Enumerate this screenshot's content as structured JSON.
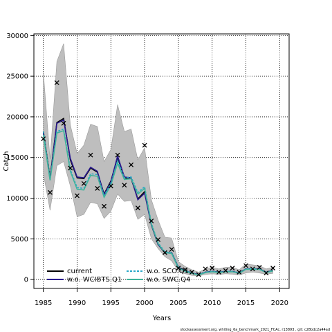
{
  "chart_data": {
    "type": "line",
    "xlabel": "Years",
    "ylabel": "Catch",
    "xlim": [
      1983.6,
      2021.4
    ],
    "ylim": [
      -1100,
      30200
    ],
    "xticks": [
      1985,
      1990,
      1995,
      2000,
      2005,
      2010,
      2015,
      2020
    ],
    "yticks": [
      0,
      5000,
      10000,
      15000,
      20000,
      25000,
      30000
    ],
    "grid": true,
    "legend_position": "bottom-left",
    "x": [
      1985,
      1986,
      1987,
      1988,
      1989,
      1990,
      1991,
      1992,
      1993,
      1994,
      1995,
      1996,
      1997,
      1998,
      1999,
      2000,
      2001,
      2002,
      2003,
      2004,
      2005,
      2006,
      2007,
      2008,
      2009,
      2010,
      2011,
      2012,
      2013,
      2014,
      2015,
      2016,
      2017,
      2018,
      2019
    ],
    "band": {
      "color": "#bebebe",
      "lower": [
        13000,
        8500,
        14000,
        14500,
        11500,
        7700,
        8000,
        9500,
        9300,
        7500,
        8400,
        10500,
        9600,
        9700,
        7400,
        8000,
        5000,
        3800,
        2800,
        2300,
        1000,
        700,
        500,
        450,
        600,
        700,
        600,
        700,
        650,
        550,
        800,
        900,
        800,
        650,
        750
      ],
      "upper": [
        25500,
        14800,
        26800,
        29000,
        19000,
        15500,
        16500,
        19100,
        18800,
        14500,
        16000,
        21500,
        18200,
        18500,
        14700,
        16200,
        9800,
        7300,
        5200,
        5100,
        2200,
        1600,
        1200,
        900,
        1300,
        1500,
        1300,
        1500,
        1500,
        1200,
        1900,
        1800,
        1700,
        1300,
        1500
      ]
    },
    "series": [
      {
        "name": "current",
        "color": "#000000",
        "dash": "solid",
        "values": [
          18200,
          12500,
          19300,
          19800,
          14700,
          12500,
          12400,
          13700,
          13200,
          10500,
          12100,
          15000,
          12500,
          12400,
          9900,
          10800,
          6700,
          4300,
          3300,
          3300,
          1500,
          1100,
          800,
          600,
          900,
          1000,
          900,
          1000,
          1000,
          800,
          1300,
          1300,
          1300,
          900,
          1100
        ]
      },
      {
        "name": "w.o. WCIBTS.Q1",
        "color": "#2a1a8f",
        "dash": "solid",
        "values": [
          18000,
          12300,
          19200,
          19600,
          14900,
          12600,
          12500,
          13800,
          13300,
          10400,
          12000,
          15200,
          12600,
          12500,
          9800,
          10600,
          6700,
          4300,
          3300,
          3300,
          1500,
          1100,
          800,
          600,
          900,
          1000,
          900,
          1000,
          1000,
          800,
          1300,
          1300,
          1300,
          900,
          1100
        ]
      },
      {
        "name": "w.o. SCO.Q1",
        "color": "#2aa8c8",
        "dash": "dashed",
        "values": [
          18200,
          12400,
          18200,
          18500,
          13500,
          11300,
          11200,
          13000,
          12900,
          10300,
          11800,
          14600,
          12500,
          12600,
          10700,
          11400,
          6900,
          4500,
          3400,
          3300,
          1500,
          1100,
          800,
          600,
          900,
          1000,
          900,
          1000,
          1000,
          800,
          1300,
          1300,
          1300,
          900,
          1100
        ]
      },
      {
        "name": "w.o. SWC.Q4",
        "color": "#3fb39b",
        "dash": "solid",
        "values": [
          17800,
          12200,
          18000,
          18300,
          13300,
          11100,
          11000,
          12800,
          12700,
          10100,
          11600,
          14300,
          12300,
          12400,
          10500,
          11200,
          6800,
          4400,
          3300,
          3200,
          1400,
          1000,
          750,
          550,
          850,
          950,
          850,
          950,
          950,
          750,
          1250,
          1250,
          1250,
          850,
          1050
        ]
      }
    ],
    "observed": {
      "name": "observed catch",
      "marker": "x",
      "values": [
        17300,
        10700,
        24200,
        19200,
        13700,
        10300,
        11800,
        15300,
        11200,
        9000,
        11500,
        15300,
        11600,
        14100,
        8800,
        16500,
        7200,
        4900,
        3300,
        3700,
        1400,
        1200,
        900,
        600,
        1300,
        1400,
        900,
        1100,
        1400,
        900,
        1700,
        1300,
        1500,
        800,
        1400
      ]
    },
    "legend": [
      {
        "label": "current",
        "series": 0
      },
      {
        "label": "w.o. WCIBTS.Q1",
        "series": 1
      },
      {
        "label": "w.o. SCO.Q1",
        "series": 2
      },
      {
        "label": "w.o. SWC.Q4",
        "series": 3
      }
    ],
    "footnote": "stockassessment.org, whiting_6a_benchmark_2021_FCAc, r13893 , git: c28bdc2a44ad"
  }
}
